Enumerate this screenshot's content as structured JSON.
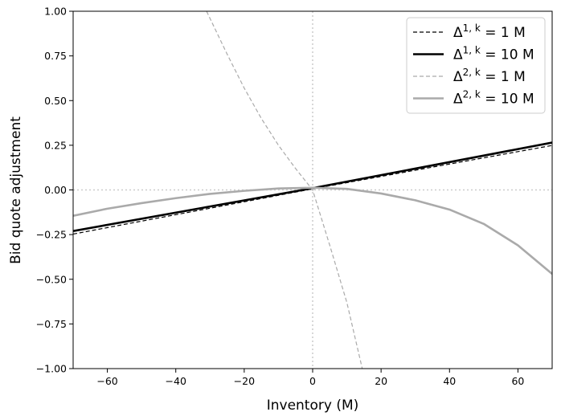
{
  "chart_data": {
    "type": "line",
    "xlabel": "Inventory (M)",
    "ylabel": "Bid quote adjustment",
    "xlim": [
      -70,
      70
    ],
    "ylim": [
      -1.0,
      1.0
    ],
    "xticks": [
      -60,
      -40,
      -20,
      0,
      20,
      40,
      60
    ],
    "xtick_labels": [
      "−60",
      "−40",
      "−20",
      "0",
      "20",
      "40",
      "60"
    ],
    "yticks": [
      1.0,
      0.75,
      0.5,
      0.25,
      0.0,
      -0.25,
      -0.5,
      -0.75,
      -1.0
    ],
    "ytick_labels": [
      "1.00",
      "0.75",
      "0.50",
      "0.25",
      "0.00",
      "−0.25",
      "−0.50",
      "−0.75",
      "−1.00"
    ],
    "grid": false,
    "reference_lines": [
      {
        "axis": "x",
        "value": 0,
        "style": "dotted",
        "color": "#cccccc"
      },
      {
        "axis": "y",
        "value": 0,
        "style": "dotted",
        "color": "#cccccc"
      }
    ],
    "legend_position": "top-right",
    "series": [
      {
        "name": "Δ^{1,k} = 1 M",
        "legend": {
          "base": "Δ",
          "sup": "1, k",
          "rest": " = 1 M"
        },
        "color": "#000000",
        "dash": "dashed",
        "width": 1.2,
        "x": [
          -70,
          0,
          70
        ],
        "y": [
          -0.247,
          0.006,
          0.249
        ]
      },
      {
        "name": "Δ^{1,k} = 10 M",
        "legend": {
          "base": "Δ",
          "sup": "1, k",
          "rest": " = 10 M"
        },
        "color": "#000000",
        "dash": "solid",
        "width": 2.6,
        "x": [
          -70,
          0,
          70
        ],
        "y": [
          -0.23,
          0.01,
          0.265
        ]
      },
      {
        "name": "Δ^{2,k} = 1 M",
        "legend": {
          "base": "Δ",
          "sup": "2, k",
          "rest": " = 1 M"
        },
        "color": "#aaaaaa",
        "dash": "dashed",
        "width": 1.2,
        "x": [
          -31,
          -25,
          -20,
          -15,
          -10,
          -5,
          0,
          5,
          10,
          14.5
        ],
        "y": [
          1.0,
          0.76,
          0.57,
          0.4,
          0.25,
          0.12,
          0.0,
          -0.31,
          -0.63,
          -1.0
        ]
      },
      {
        "name": "Δ^{2,k} = 10 M",
        "legend": {
          "base": "Δ",
          "sup": "2, k",
          "rest": " = 10 M"
        },
        "color": "#aaaaaa",
        "dash": "solid",
        "width": 2.6,
        "x": [
          -70,
          -60,
          -50,
          -40,
          -30,
          -20,
          -10,
          0,
          10,
          20,
          30,
          40,
          50,
          60,
          70
        ],
        "y": [
          -0.145,
          -0.105,
          -0.074,
          -0.046,
          -0.022,
          -0.005,
          0.008,
          0.012,
          0.006,
          -0.02,
          -0.058,
          -0.11,
          -0.19,
          -0.31,
          -0.47
        ]
      }
    ]
  }
}
